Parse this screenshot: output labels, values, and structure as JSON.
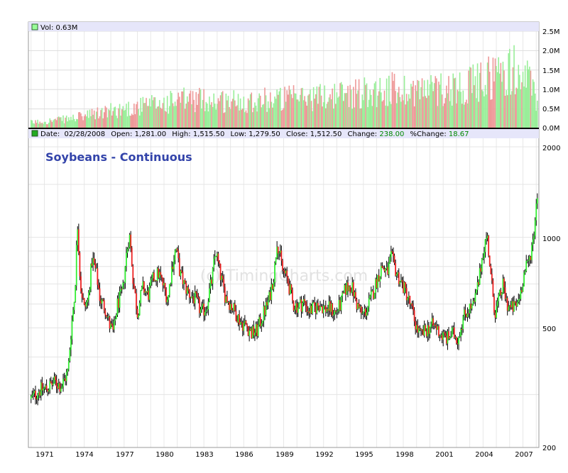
{
  "volume_panel": {
    "legend_label": "Vol: 0.63M",
    "legend_color": "#99ff99",
    "y_ticks": [
      "2.5M",
      "2.0M",
      "1.5M",
      "1.0M",
      "0.5M",
      "0.0M"
    ]
  },
  "price_panel": {
    "legend": {
      "date_label": "Date:",
      "date": "02/28/2008",
      "open_label": "Open:",
      "open": "1,281.00",
      "high_label": "High:",
      "high": "1,515.50",
      "low_label": "Low:",
      "low": "1,279.50",
      "close_label": "Close:",
      "close": "1,512.50",
      "change_label": "Change:",
      "change": "238.00",
      "pct_change_label": "%Change:",
      "pct_change": "18.67"
    },
    "title": "Soybeans - Continuous",
    "watermark": "(c) TimingCharts.com",
    "y_ticks": [
      "2000",
      "1000",
      "500",
      "200"
    ]
  },
  "x_ticks": [
    "1971",
    "1974",
    "1977",
    "1980",
    "1983",
    "1986",
    "1989",
    "1992",
    "1995",
    "1998",
    "2001",
    "2004",
    "2007"
  ],
  "colors": {
    "up": "#33ee33",
    "down": "#ee2222",
    "vol_up": "#99ee99",
    "vol_down": "#ee9999",
    "legend_bg": "#e6e6fa",
    "title": "#3344aa",
    "change_value": "#008800"
  },
  "chart_data": {
    "type": "candlestick",
    "title": "Soybeans - Continuous",
    "x_range": [
      1969.8,
      2008.2
    ],
    "y_scale": "log",
    "ylim": [
      200,
      2000
    ],
    "volume_ylim": [
      0,
      2.5
    ],
    "volume_unit": "M",
    "last_bar": {
      "date": "02/28/2008",
      "open": 1281.0,
      "high": 1515.5,
      "low": 1279.5,
      "close": 1512.5,
      "change": 238.0,
      "pct_change": 18.67,
      "volume": 0.63
    },
    "price_path": [
      [
        1970.0,
        290
      ],
      [
        1970.6,
        310
      ],
      [
        1971.2,
        315
      ],
      [
        1971.8,
        330
      ],
      [
        1972.3,
        320
      ],
      [
        1972.8,
        360
      ],
      [
        1973.0,
        480
      ],
      [
        1973.3,
        650
      ],
      [
        1973.5,
        1100
      ],
      [
        1973.7,
        700
      ],
      [
        1974.0,
        580
      ],
      [
        1974.3,
        620
      ],
      [
        1974.6,
        850
      ],
      [
        1974.9,
        760
      ],
      [
        1975.2,
        620
      ],
      [
        1975.6,
        580
      ],
      [
        1975.9,
        510
      ],
      [
        1976.2,
        480
      ],
      [
        1976.5,
        600
      ],
      [
        1976.9,
        660
      ],
      [
        1977.2,
        900
      ],
      [
        1977.4,
        1020
      ],
      [
        1977.7,
        700
      ],
      [
        1978.0,
        560
      ],
      [
        1978.4,
        680
      ],
      [
        1978.8,
        640
      ],
      [
        1979.2,
        730
      ],
      [
        1979.6,
        760
      ],
      [
        1980.0,
        680
      ],
      [
        1980.3,
        620
      ],
      [
        1980.6,
        800
      ],
      [
        1980.9,
        920
      ],
      [
        1981.2,
        760
      ],
      [
        1981.6,
        680
      ],
      [
        1982.0,
        640
      ],
      [
        1982.4,
        620
      ],
      [
        1982.8,
        560
      ],
      [
        1983.2,
        590
      ],
      [
        1983.6,
        720
      ],
      [
        1983.9,
        900
      ],
      [
        1984.2,
        760
      ],
      [
        1984.6,
        640
      ],
      [
        1985.0,
        600
      ],
      [
        1985.4,
        560
      ],
      [
        1985.8,
        520
      ],
      [
        1986.2,
        510
      ],
      [
        1986.6,
        480
      ],
      [
        1987.0,
        490
      ],
      [
        1987.5,
        560
      ],
      [
        1987.9,
        620
      ],
      [
        1988.3,
        760
      ],
      [
        1988.5,
        980
      ],
      [
        1988.9,
        780
      ],
      [
        1989.3,
        720
      ],
      [
        1989.7,
        600
      ],
      [
        1990.1,
        590
      ],
      [
        1990.5,
        610
      ],
      [
        1990.9,
        570
      ],
      [
        1991.3,
        580
      ],
      [
        1991.7,
        600
      ],
      [
        1992.1,
        580
      ],
      [
        1992.5,
        580
      ],
      [
        1992.9,
        560
      ],
      [
        1993.3,
        600
      ],
      [
        1993.7,
        680
      ],
      [
        1994.1,
        690
      ],
      [
        1994.5,
        600
      ],
      [
        1994.9,
        550
      ],
      [
        1995.3,
        580
      ],
      [
        1995.7,
        650
      ],
      [
        1996.1,
        740
      ],
      [
        1996.4,
        800
      ],
      [
        1996.8,
        760
      ],
      [
        1997.1,
        860
      ],
      [
        1997.5,
        760
      ],
      [
        1997.9,
        700
      ],
      [
        1998.3,
        640
      ],
      [
        1998.7,
        560
      ],
      [
        1999.0,
        500
      ],
      [
        1999.3,
        470
      ],
      [
        1999.7,
        490
      ],
      [
        2000.1,
        510
      ],
      [
        2000.5,
        500
      ],
      [
        2000.9,
        470
      ],
      [
        2001.3,
        460
      ],
      [
        2001.7,
        480
      ],
      [
        2002.1,
        460
      ],
      [
        2002.5,
        540
      ],
      [
        2002.9,
        580
      ],
      [
        2003.3,
        590
      ],
      [
        2003.7,
        720
      ],
      [
        2004.0,
        900
      ],
      [
        2004.3,
        1020
      ],
      [
        2004.6,
        720
      ],
      [
        2004.9,
        560
      ],
      [
        2005.2,
        620
      ],
      [
        2005.5,
        690
      ],
      [
        2005.8,
        600
      ],
      [
        2006.1,
        580
      ],
      [
        2006.5,
        590
      ],
      [
        2006.8,
        650
      ],
      [
        2007.1,
        760
      ],
      [
        2007.5,
        850
      ],
      [
        2007.8,
        1000
      ],
      [
        2008.15,
        1512.5
      ]
    ],
    "volume_path": [
      [
        1970.0,
        0.15
      ],
      [
        1973.0,
        0.25
      ],
      [
        1976.0,
        0.45
      ],
      [
        1979.0,
        0.6
      ],
      [
        1982.0,
        0.75
      ],
      [
        1985.0,
        0.7
      ],
      [
        1988.0,
        0.75
      ],
      [
        1991.0,
        0.8
      ],
      [
        1994.0,
        0.9
      ],
      [
        1997.0,
        1.0
      ],
      [
        2000.0,
        1.0
      ],
      [
        2003.0,
        1.1
      ],
      [
        2005.0,
        1.4
      ],
      [
        2006.5,
        1.5
      ],
      [
        2007.5,
        1.2
      ],
      [
        2008.15,
        0.63
      ]
    ]
  }
}
